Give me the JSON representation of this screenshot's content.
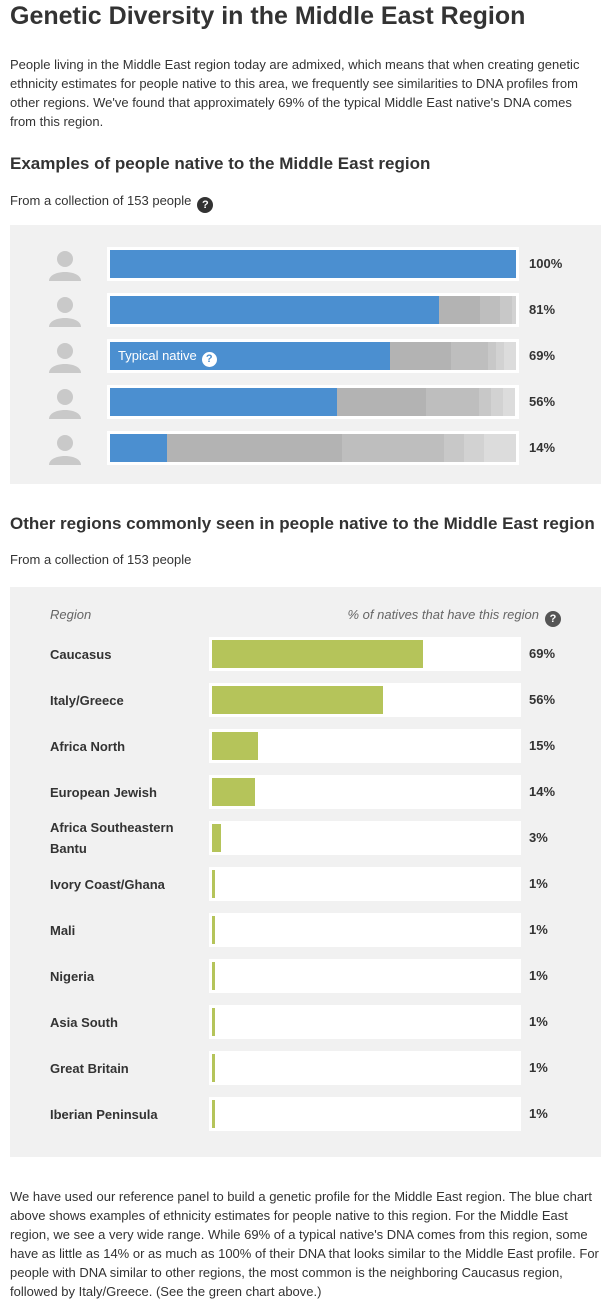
{
  "page": {
    "title": "Genetic Diversity in the Middle East Region",
    "intro": "People living in the Middle East region today are admixed, which means that when creating genetic ethnicity estimates for people native to this area, we frequently see similarities to DNA profiles from other regions. We've found that approximately 69% of the typical Middle East native's DNA comes from this region.",
    "outro": "We have used our reference panel to build a genetic profile for the Middle East region. The blue chart above shows examples of ethnicity estimates for people native to this region. For the Middle East region, we see a very wide range. While 69% of a typical native's DNA comes from this region, some have as little as 14% or as much as 100% of their DNA that looks similar to the Middle East profile. For people with DNA similar to other regions, the most common is the neighboring Caucasus region, followed by Italy/Greece. (See the green chart above.)"
  },
  "examples_section": {
    "heading": "Examples of people native to the Middle East region",
    "subtitle": "From a collection of 153 people",
    "help_glyph": "?",
    "typical_label": "Typical native"
  },
  "regions_section": {
    "heading": "Other regions commonly seen in people native to the Middle East region",
    "subtitle": "From a collection of 153 people",
    "col_region": "Region",
    "col_percent": "% of natives that have this region",
    "help_glyph": "?"
  },
  "chart_data": [
    {
      "type": "bar",
      "orientation": "horizontal",
      "stacked": true,
      "typical_index": 2,
      "rows": [
        {
          "label": "100%",
          "primary": 100,
          "others": []
        },
        {
          "label": "81%",
          "primary": 81,
          "others": [
            10,
            5,
            3,
            1
          ]
        },
        {
          "label": "69%",
          "primary": 69,
          "others": [
            15,
            9,
            2,
            2,
            3
          ]
        },
        {
          "label": "56%",
          "primary": 56,
          "others": [
            22,
            13,
            3,
            3,
            3
          ]
        },
        {
          "label": "14%",
          "primary": 14,
          "others": [
            43,
            25,
            5,
            5,
            8
          ]
        }
      ],
      "colors": {
        "primary": "#4b8fd0",
        "others": [
          "#b3b3b3",
          "#bebebe",
          "#c8c8c8",
          "#d2d2d2",
          "#dcdcdc"
        ]
      }
    },
    {
      "type": "bar",
      "orientation": "horizontal",
      "categories": [
        "Caucasus",
        "Italy/Greece",
        "Africa North",
        "European Jewish",
        "Africa Southeastern Bantu",
        "Ivory Coast/Ghana",
        "Mali",
        "Nigeria",
        "Asia South",
        "Great Britain",
        "Iberian Peninsula"
      ],
      "values": [
        69,
        56,
        15,
        14,
        3,
        1,
        1,
        1,
        1,
        1,
        1
      ],
      "value_labels": [
        "69%",
        "56%",
        "15%",
        "14%",
        "3%",
        "1%",
        "1%",
        "1%",
        "1%",
        "1%",
        "1%"
      ],
      "xlim": [
        0,
        100
      ],
      "color": "#b5c45a"
    }
  ]
}
